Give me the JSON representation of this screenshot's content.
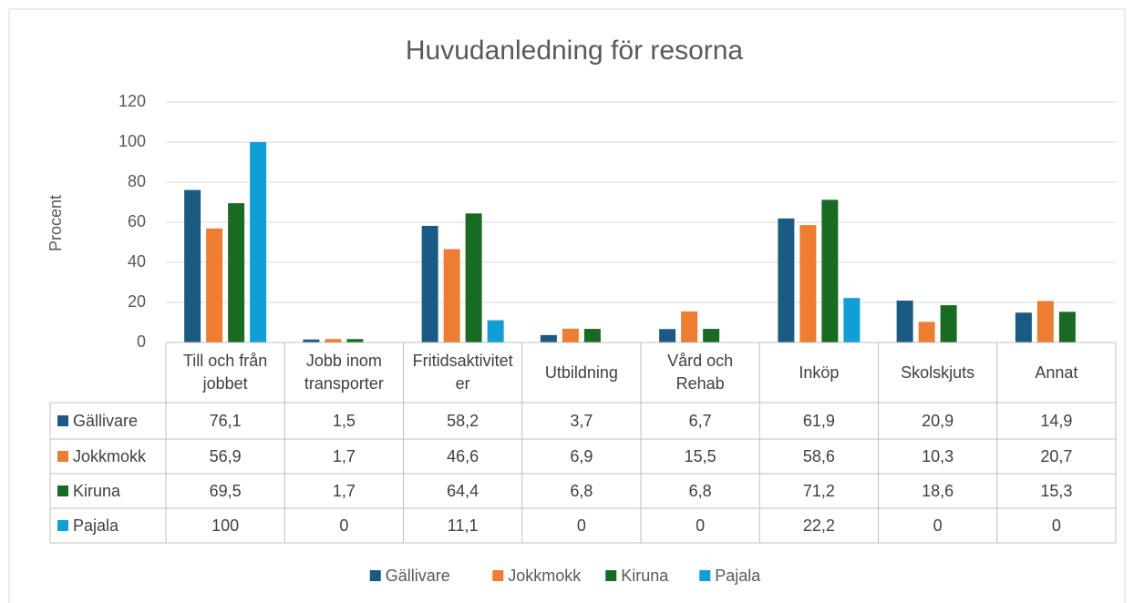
{
  "chart_data": {
    "type": "bar",
    "title": "Huvudanledning för resorna",
    "ylabel": "Procent",
    "categories": [
      "Till och från jobbet",
      "Jobb inom transporter",
      "Fritidsaktiviteter",
      "Utbildning",
      "Vård och Rehab",
      "Inköp",
      "Skolskjuts",
      "Annat"
    ],
    "series": [
      {
        "name": "Gällivare",
        "color": "#1b5a82",
        "values": [
          76.1,
          1.5,
          58.2,
          3.7,
          6.7,
          61.9,
          20.9,
          14.9
        ],
        "value_labels": [
          "76,1",
          "1,5",
          "58,2",
          "3,7",
          "6,7",
          "61,9",
          "20,9",
          "14,9"
        ]
      },
      {
        "name": "Jokkmokk",
        "color": "#ed7d31",
        "values": [
          56.9,
          1.7,
          46.6,
          6.9,
          15.5,
          58.6,
          10.3,
          20.7
        ],
        "value_labels": [
          "56,9",
          "1,7",
          "46,6",
          "6,9",
          "15,5",
          "58,6",
          "10,3",
          "20,7"
        ]
      },
      {
        "name": "Kiruna",
        "color": "#196b24",
        "values": [
          69.5,
          1.7,
          64.4,
          6.8,
          6.8,
          71.2,
          18.6,
          15.3
        ],
        "value_labels": [
          "69,5",
          "1,7",
          "64,4",
          "6,8",
          "6,8",
          "71,2",
          "18,6",
          "15,3"
        ]
      },
      {
        "name": "Pajala",
        "color": "#0f9ed5",
        "values": [
          100,
          0,
          11.1,
          0,
          0,
          22.2,
          0,
          0
        ],
        "value_labels": [
          "100",
          "0",
          "11,1",
          "0",
          "0",
          "22,2",
          "0",
          "0"
        ]
      }
    ],
    "ylim": [
      0,
      120
    ],
    "yticks": [
      0,
      20,
      40,
      60,
      80,
      100,
      120
    ],
    "grid": true,
    "legend": "bottom"
  }
}
